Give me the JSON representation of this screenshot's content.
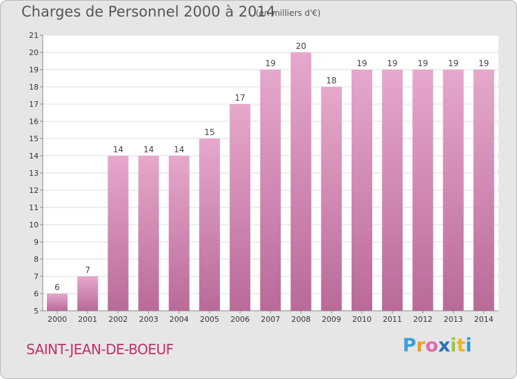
{
  "title": "Charges de Personnel 2000 à 2014",
  "subtitle": "(en milliers d'€)",
  "commune": "SAINT-JEAN-DE-BOEUF",
  "logo": {
    "letters": [
      "P",
      "r",
      "o",
      "x",
      "i",
      "t",
      "i"
    ],
    "colors": [
      "#3aa0d8",
      "#e8a21c",
      "#e06aa8",
      "#2a6fb8",
      "#9bc83a",
      "#f0b41e",
      "#2a9ad6"
    ]
  },
  "colors": {
    "bar": "#d88fb8",
    "bar_top": "#e6a8cc",
    "bar_bottom": "#b96a98",
    "plot_background": "#ffffff",
    "grid": "#dddddd"
  },
  "chart_data": {
    "type": "bar",
    "categories": [
      "2000",
      "2001",
      "2002",
      "2003",
      "2004",
      "2005",
      "2006",
      "2007",
      "2008",
      "2009",
      "2010",
      "2011",
      "2012",
      "2013",
      "2014"
    ],
    "values": [
      6,
      7,
      14,
      14,
      14,
      15,
      17,
      19,
      20,
      18,
      19,
      19,
      19,
      19,
      19
    ],
    "value_labels": [
      "6",
      "7",
      "14",
      "14",
      "14",
      "15",
      "17",
      "19",
      "20",
      "18",
      "19",
      "19",
      "19",
      "19",
      "19"
    ],
    "ylim": [
      5,
      21
    ],
    "yticks": [
      "5",
      "6",
      "7",
      "8",
      "9",
      "10",
      "11",
      "12",
      "13",
      "14",
      "15",
      "16",
      "17",
      "18",
      "19",
      "20",
      "21"
    ],
    "xlabel": "",
    "ylabel": "",
    "grid": true,
    "legend": "none"
  }
}
